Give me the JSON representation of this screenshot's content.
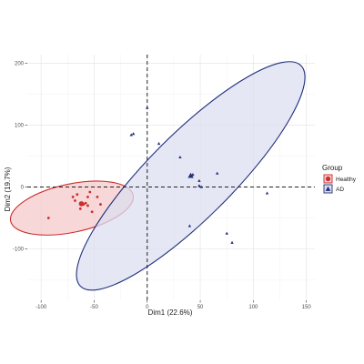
{
  "chart_data": {
    "type": "scatter",
    "title": "",
    "xlabel": "Dim1 (22.6%)",
    "ylabel": "Dim2 (19.7%)",
    "xlim": [
      -113,
      158
    ],
    "ylim": [
      -183,
      214
    ],
    "x_ticks": [
      -100,
      -50,
      0,
      50,
      100,
      150
    ],
    "y_ticks": [
      -100,
      0,
      100,
      200
    ],
    "x_tick_labels": [
      "-100",
      "-50",
      "0",
      "50",
      "100",
      "150"
    ],
    "y_tick_labels": [
      "-100",
      "0",
      "100",
      "200"
    ],
    "grid": true,
    "reference_lines": {
      "x": 0,
      "y": 0,
      "style": "dashed"
    },
    "legend": {
      "title": "Group",
      "position": "right"
    },
    "series": [
      {
        "name": "Healthy",
        "marker": "circle",
        "color": "#cc2e2e",
        "fill": "#f4c9c9",
        "points": [
          [
            -93,
            -50
          ],
          [
            -70,
            -16
          ],
          [
            -66,
            -12
          ],
          [
            -60,
            -28
          ],
          [
            -58,
            -26
          ],
          [
            -56,
            -30
          ],
          [
            -52,
            -40
          ],
          [
            -47,
            -16
          ],
          [
            -44,
            -28
          ],
          [
            -68,
            -22
          ],
          [
            -63,
            -35
          ],
          [
            -56,
            -16
          ],
          [
            -54,
            -8
          ],
          [
            -62,
            -26
          ]
        ],
        "centroid": [
          -62,
          -27
        ],
        "ellipse": {
          "cx": -71,
          "cy": -34,
          "rx": 59,
          "ry": 39,
          "angle": -12
        }
      },
      {
        "name": "AD",
        "marker": "triangle",
        "color": "#1f2f7c",
        "fill": "#dcdff0",
        "points": [
          [
            -15,
            84
          ],
          [
            -13,
            86
          ],
          [
            0,
            128
          ],
          [
            11,
            70
          ],
          [
            31,
            48
          ],
          [
            43,
            20
          ],
          [
            49,
            2
          ],
          [
            51,
            0
          ],
          [
            66,
            22
          ],
          [
            40,
            -63
          ],
          [
            75,
            -75
          ],
          [
            80,
            -90
          ],
          [
            113,
            -10
          ],
          [
            49,
            10
          ]
        ],
        "centroid": [
          41,
          18
        ],
        "ellipse": {
          "cx": 41,
          "cy": 18,
          "rx": 147,
          "ry": 68,
          "angle": -45
        }
      }
    ]
  }
}
